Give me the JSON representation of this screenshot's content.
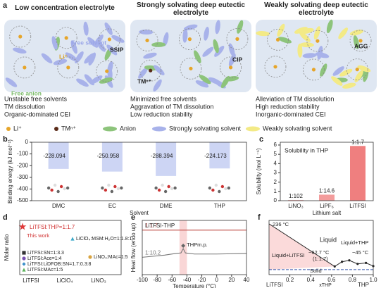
{
  "panel_a": {
    "label": "a",
    "columns": [
      {
        "title": "Low concentration electrolyte",
        "tags": [
          "Free solvent",
          "SSIP",
          "Li⁺",
          "Free anion"
        ],
        "notes": [
          "Unstable free solvents",
          "TM dissolution",
          "Organic-dominated CEI"
        ]
      },
      {
        "title": "Strongly solvating deep eutectic electrolyte",
        "tags": [
          "TMⁿ⁺",
          "CIP"
        ],
        "notes": [
          "Minimized free solvents",
          "Aggravation of TM dissolution",
          "Low reduction stability"
        ]
      },
      {
        "title": "Weakly solvating deep eutectic electrolyte",
        "tags": [
          "AGG"
        ],
        "notes": [
          "Alleviation of TM dissolution",
          "High reduction stability",
          "Inorganic-dominated CEI"
        ]
      }
    ],
    "legend": [
      "Li⁺",
      "TMⁿ⁺",
      "Anion",
      "Strongly solvating solvent",
      "Weakly solvating solvent"
    ]
  },
  "chart_data": [
    {
      "type": "bar",
      "label": "b",
      "xlabel": "Solvent",
      "ylabel": "Binding energy (kJ mol⁻¹)",
      "categories": [
        "DMC",
        "EC",
        "DME",
        "THP"
      ],
      "values": [
        -228.094,
        -250.958,
        -288.394,
        -224.173
      ],
      "ylim": [
        -500,
        0
      ],
      "yticks": [
        -500,
        -400,
        -300,
        -200,
        -100,
        0
      ],
      "color": "#cdd5f4"
    },
    {
      "type": "bar",
      "label": "c",
      "annotation": "Solubility in THP",
      "xlabel": "Lithium salt",
      "ylabel": "Solubility (mol L⁻¹)",
      "categories": [
        "LiNO₃",
        "LiPF₆",
        "LiTFSI"
      ],
      "values": [
        0.08,
        0.65,
        5.9
      ],
      "ratio_labels": [
        "1:102",
        "1:14.6",
        "1:1.7"
      ],
      "ylim": [
        0,
        6.3
      ],
      "yticks": [
        0,
        1,
        2,
        3,
        4,
        5,
        6
      ],
      "color": "#ef7f7f"
    },
    {
      "type": "text_scatter",
      "label": "d",
      "ylabel": "Molar ratio",
      "annotation": "This work",
      "categories": [
        "LiTFSI",
        "LiClO₄",
        "LiNO₃"
      ],
      "points": [
        {
          "label": "LiTFSI:THP=1:1.7",
          "category": "LiTFSI",
          "color": "#e03a3a",
          "marker": "star"
        },
        {
          "label": "LiClO₄:MSM:H₂O=1:1.8:1",
          "category": "LiClO₄",
          "color": "#3aa9c9",
          "marker": "triangle"
        },
        {
          "label": "LiNO₃:MAc=1:5",
          "category": "LiNO₃",
          "color": "#d9a441",
          "marker": "circle"
        },
        {
          "label": "LiTFSI:SN=1:3.3",
          "category": "LiTFSI",
          "color": "#333333",
          "marker": "square"
        },
        {
          "label": "LiTFSI:Ace=1:4",
          "category": "LiTFSI",
          "color": "#7a52b3",
          "marker": "circle"
        },
        {
          "label": "LiTFSI:LiDFOB:SN=1.7:0.3:8",
          "category": "LiTFSI",
          "color": "#3a8fc9",
          "marker": "diamond"
        },
        {
          "label": "LiTFSI:MAc=1:5",
          "category": "LiTFSI",
          "color": "#5bb35b",
          "marker": "triangle"
        }
      ]
    },
    {
      "type": "line",
      "label": "e",
      "title": "LiTFSI-THP",
      "xlabel": "Temperature (°C)",
      "ylabel": "Heat flow (endo up)",
      "annotation": "THPm.p.",
      "highlight": [
        -50,
        -40
      ],
      "xlim": [
        -100,
        40
      ],
      "xticks": [
        -100,
        -80,
        -60,
        -40,
        -20,
        0,
        20,
        40
      ],
      "ylim": [
        0,
        10
      ],
      "series": [
        {
          "name": "1:1.7",
          "color": "#c0504d",
          "x": [
            -100,
            40
          ],
          "values": [
            8.2,
            8.2
          ]
        },
        {
          "name": "1:10.2",
          "color": "#777777",
          "x": [
            -100,
            -70,
            -55,
            -48,
            -45,
            -42,
            -30,
            0,
            40
          ],
          "values": [
            3.2,
            3.6,
            3.9,
            4.0,
            4.8,
            4.0,
            3.8,
            3.8,
            3.9
          ]
        }
      ]
    },
    {
      "type": "phase",
      "label": "f",
      "xlabel": "xTHP",
      "end_labels": [
        "LiTFSI",
        "THP"
      ],
      "xlim": [
        0,
        1
      ],
      "xticks": [
        0.2,
        0.4,
        0.6,
        0.8,
        {
          "value": 1,
          "label": "1.0"
        }
      ],
      "ylim": [
        -120,
        260
      ],
      "annotations": [
        "236 °C",
        "Liquid",
        "Liquid+LiTFSI",
        "−62.7 °C",
        "(1:1.7)",
        "Liquid+THP",
        "−45 °C",
        "Solid"
      ],
      "series": [
        {
          "color": "#222222",
          "x": [
            0,
            0.63,
            0.7,
            0.77,
            0.85,
            0.93,
            1.0
          ],
          "values": [
            236,
            -62.7,
            -30,
            -20,
            -45,
            -38,
            -60
          ]
        },
        {
          "color": "#3355aa",
          "x": [
            0,
            1
          ],
          "values": [
            -85,
            -85
          ]
        }
      ]
    }
  ]
}
